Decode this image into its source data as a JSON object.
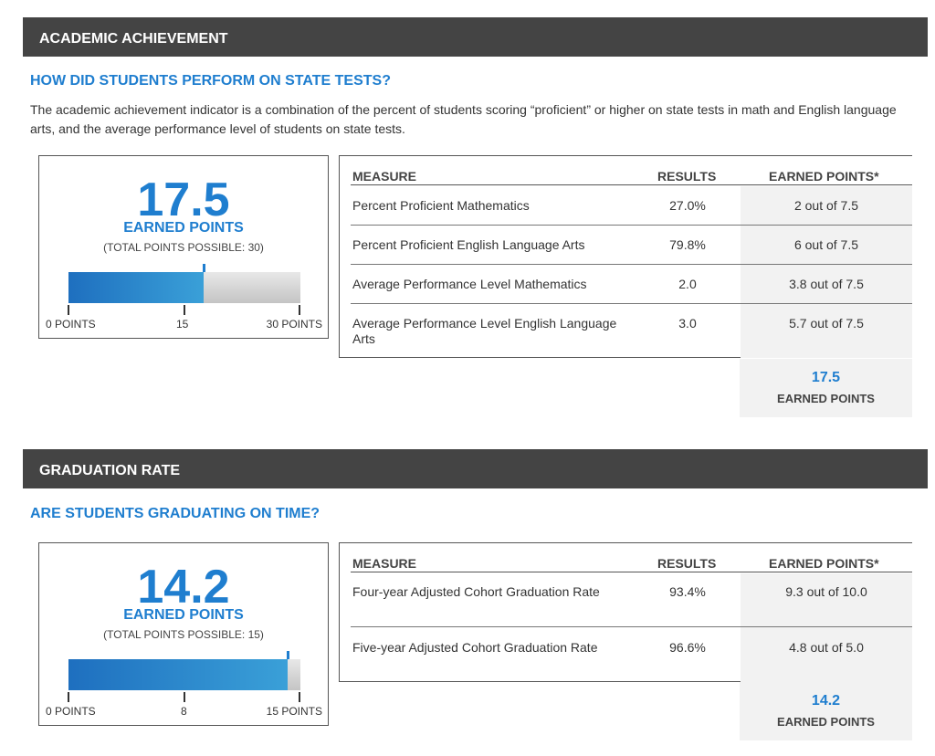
{
  "academic": {
    "header": "ACADEMIC ACHIEVEMENT",
    "question": "HOW DID STUDENTS PERFORM ON STATE TESTS?",
    "intro": "The academic achievement indicator is a combination of the percent of students scoring “proficient” or higher on state tests in math and English language arts, and the average performance level of students on state tests.",
    "score": {
      "points": "17.5",
      "earned_label": "EARNED POINTS",
      "possible_label": "(TOTAL POINTS POSSIBLE: 30)",
      "bar_fraction": 0.5833,
      "ticks": [
        "0 POINTS",
        "15",
        "30 POINTS"
      ]
    },
    "table": {
      "headers": [
        "MEASURE",
        "RESULTS",
        "EARNED POINTS*"
      ],
      "rows": [
        {
          "measure": "Percent Proficient Mathematics",
          "result": "27.0%",
          "points": "2 out of 7.5"
        },
        {
          "measure": "Percent Proficient English Language Arts",
          "result": "79.8%",
          "points": "6 out of 7.5"
        },
        {
          "measure": "Average Performance Level Mathematics",
          "result": "2.0",
          "points": "3.8 out of 7.5"
        },
        {
          "measure": "Average Performance Level English Language Arts",
          "result": "3.0",
          "points": "5.7 out of 7.5"
        }
      ],
      "total": "17.5",
      "total_label": "EARNED POINTS"
    }
  },
  "graduation": {
    "header": "GRADUATION RATE",
    "question": "ARE STUDENTS GRADUATING ON TIME?",
    "score": {
      "points": "14.2",
      "earned_label": "EARNED POINTS",
      "possible_label": "(TOTAL POINTS POSSIBLE: 15)",
      "bar_fraction": 0.9467,
      "ticks": [
        "0 POINTS",
        "8",
        "15 POINTS"
      ]
    },
    "table": {
      "headers": [
        "MEASURE",
        "RESULTS",
        "EARNED POINTS*"
      ],
      "rows": [
        {
          "measure": "Four-year Adjusted Cohort Graduation Rate",
          "result": "93.4%",
          "points": "9.3 out of 10.0"
        },
        {
          "measure": "Five-year Adjusted Cohort Graduation Rate",
          "result": "96.6%",
          "points": "4.8 out of 5.0"
        }
      ],
      "total": "14.2",
      "total_label": "EARNED POINTS"
    }
  },
  "colors": {
    "accent": "#1f7ecf",
    "header_bar": "#444444",
    "earned_column_bg": "#f2f2f2"
  }
}
